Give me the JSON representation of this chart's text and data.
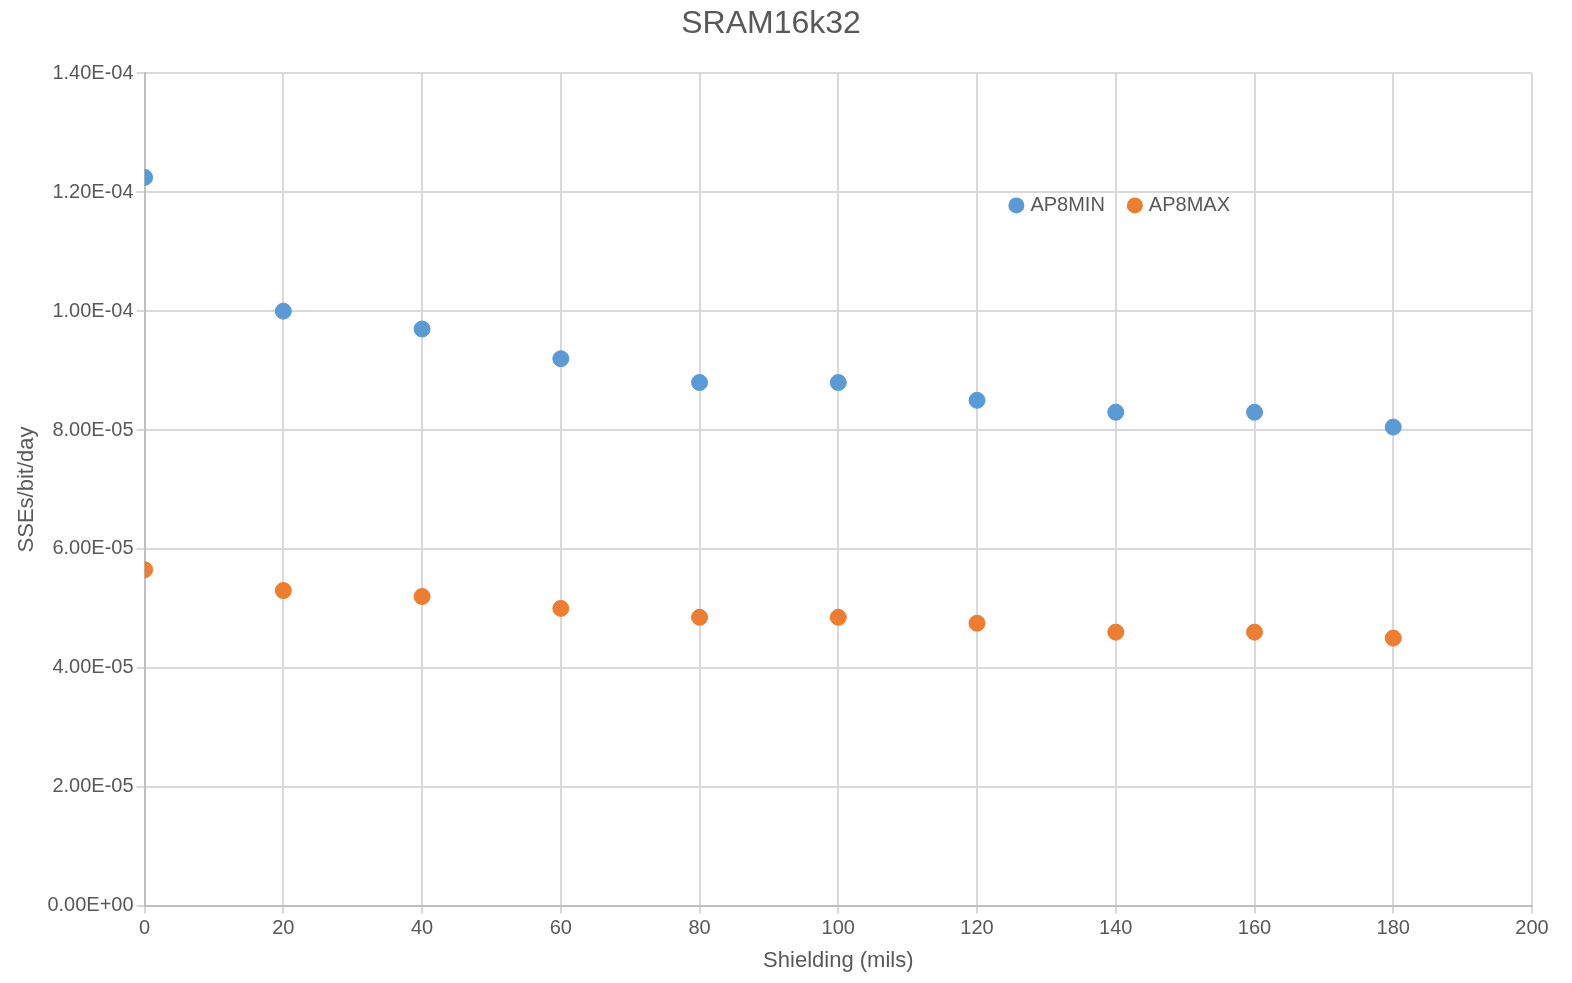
{
  "chart_data": {
    "type": "scatter",
    "title": "SRAM16k32",
    "xlabel": "Shielding (mils)",
    "ylabel": "SSEs/bit/day",
    "x": [
      0,
      20,
      40,
      60,
      80,
      100,
      120,
      140,
      160,
      180
    ],
    "series": [
      {
        "name": "AP8MIN",
        "color": "#5b9bd5",
        "values": [
          0.0001225,
          0.0001,
          9.7e-05,
          9.2e-05,
          8.8e-05,
          8.8e-05,
          8.5e-05,
          8.3e-05,
          8.3e-05,
          8.05e-05
        ]
      },
      {
        "name": "AP8MAX",
        "color": "#ed7d31",
        "values": [
          5.65e-05,
          5.3e-05,
          5.2e-05,
          5e-05,
          4.85e-05,
          4.85e-05,
          4.75e-05,
          4.6e-05,
          4.6e-05,
          4.5e-05
        ]
      }
    ],
    "xlim": [
      0,
      200
    ],
    "xticks": [
      0,
      20,
      40,
      60,
      80,
      100,
      120,
      140,
      160,
      180,
      200
    ],
    "ylim": [
      0,
      0.00014
    ],
    "yticks": [
      {
        "value": 0,
        "label": "0.00E+00"
      },
      {
        "value": 2e-05,
        "label": "2.00E-05"
      },
      {
        "value": 4e-05,
        "label": "4.00E-05"
      },
      {
        "value": 6e-05,
        "label": "6.00E-05"
      },
      {
        "value": 8e-05,
        "label": "8.00E-05"
      },
      {
        "value": 0.0001,
        "label": "1.00E-04"
      },
      {
        "value": 0.00012,
        "label": "1.20E-04"
      },
      {
        "value": 0.00014,
        "label": "1.40E-04"
      }
    ],
    "grid": true,
    "legend": "top right",
    "marker": "circle"
  }
}
